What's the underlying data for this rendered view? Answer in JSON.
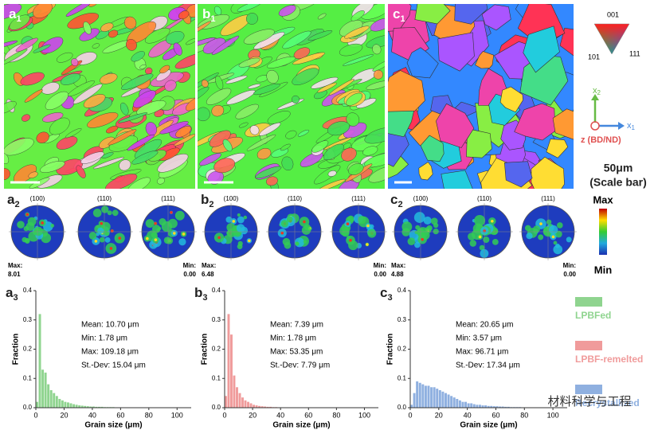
{
  "map_labels": [
    {
      "main": "a",
      "sub": "1"
    },
    {
      "main": "b",
      "sub": "1"
    },
    {
      "main": "c",
      "sub": "1"
    }
  ],
  "pole_groups": [
    {
      "label": {
        "main": "a",
        "sub": "2"
      },
      "planes": [
        "(100)",
        "(110)",
        "(111)"
      ],
      "max_label": "Max:",
      "max": "8.01",
      "min_label": "Min:",
      "min": "0.00"
    },
    {
      "label": {
        "main": "b",
        "sub": "2"
      },
      "planes": [
        "(100)",
        "(110)",
        "(111)"
      ],
      "max_label": "Max:",
      "max": "6.48",
      "min_label": "Min:",
      "min": "0.00"
    },
    {
      "label": {
        "main": "c",
        "sub": "2"
      },
      "planes": [
        "(100)",
        "(110)",
        "(111)"
      ],
      "max_label": "Max:",
      "max": "4.88",
      "min_label": "Min:",
      "min": "0.00"
    }
  ],
  "ipf_key": [
    "001",
    "101",
    "111"
  ],
  "axes_key": {
    "x2": {
      "main": "x",
      "sub": "2"
    },
    "x1": {
      "main": "x",
      "sub": "1"
    },
    "z": "z (BD/ND)"
  },
  "scale_bar": [
    "50μm",
    "(Scale bar)"
  ],
  "colorbar": [
    "Max",
    "Min"
  ],
  "legend_items": [
    {
      "name": "LPBFed",
      "color": "#8fd48f"
    },
    {
      "name": "LPBF-remelted",
      "color": "#f09b9b"
    },
    {
      "name": "Recrystallized",
      "color": "#8fb0e0"
    }
  ],
  "watermark": "材料科学与工程",
  "chart_data": [
    {
      "type": "histogram",
      "label": {
        "main": "a",
        "sub": "3"
      },
      "xlabel": "Grain size (μm)",
      "ylabel": "Fraction",
      "color": "#8fd48f",
      "annotations": [
        "Mean:  10.70 μm",
        "Min: 1.78 μm",
        "Max: 109.18 μm",
        "St.-Dev: 15.04 μm"
      ],
      "bins": [
        0,
        2,
        4,
        6,
        8,
        10,
        12,
        14,
        16,
        18,
        20,
        22,
        24,
        26,
        28,
        30,
        32,
        34,
        36,
        38,
        40,
        42,
        44,
        46,
        48,
        50,
        52,
        54,
        56,
        58,
        60,
        62,
        64,
        66,
        68,
        70,
        72,
        74,
        76,
        78,
        80,
        82,
        84,
        86,
        88,
        90,
        92,
        94,
        96,
        98,
        100,
        102,
        104,
        106,
        108,
        110
      ],
      "values": [
        0.02,
        0.32,
        0.13,
        0.12,
        0.08,
        0.06,
        0.05,
        0.04,
        0.03,
        0.025,
        0.02,
        0.018,
        0.015,
        0.012,
        0.01,
        0.008,
        0.007,
        0.006,
        0.005,
        0.004,
        0.004,
        0.003,
        0.003,
        0.003,
        0.002,
        0.002,
        0.002,
        0.002,
        0.001,
        0.001,
        0.001,
        0.001,
        0.001,
        0,
        0,
        0.001,
        0.001,
        0.001,
        0,
        0,
        0,
        0,
        0,
        0,
        0,
        0,
        0,
        0,
        0,
        0,
        0,
        0,
        0,
        0.001,
        0
      ],
      "xlim": [
        0,
        110
      ],
      "ylim": [
        0,
        0.4
      ],
      "xticks": [
        0,
        20,
        40,
        60,
        80,
        100
      ],
      "yticks": [
        {
          "value": 0,
          "label": "0.0"
        },
        0.1,
        0.2,
        0.3,
        0.4
      ]
    },
    {
      "type": "histogram",
      "label": {
        "main": "b",
        "sub": "3"
      },
      "xlabel": "Grain size (μm)",
      "ylabel": "Fraction",
      "color": "#f09b9b",
      "annotations": [
        "Mean:  7.39 μm",
        "Min: 1.78 μm",
        "Max: 53.35 μm",
        "St.-Dev: 7.79 μm"
      ],
      "bins": [
        0,
        2,
        4,
        6,
        8,
        10,
        12,
        14,
        16,
        18,
        20,
        22,
        24,
        26,
        28,
        30,
        32,
        34,
        36,
        38,
        40,
        42,
        44,
        46,
        48,
        50,
        52,
        54,
        56
      ],
      "values": [
        0.04,
        0.32,
        0.25,
        0.11,
        0.07,
        0.05,
        0.035,
        0.025,
        0.02,
        0.015,
        0.01,
        0.008,
        0.006,
        0.005,
        0.004,
        0.003,
        0.003,
        0.002,
        0.002,
        0.001,
        0.001,
        0.001,
        0.001,
        0.001,
        0,
        0.001,
        0.001,
        0
      ],
      "xlim": [
        0,
        110
      ],
      "ylim": [
        0,
        0.4
      ],
      "xticks": [
        0,
        20,
        40,
        60,
        80,
        100
      ],
      "yticks": [
        {
          "value": 0,
          "label": "0.0"
        },
        0.1,
        0.2,
        0.3,
        0.4
      ]
    },
    {
      "type": "histogram",
      "label": {
        "main": "c",
        "sub": "3"
      },
      "xlabel": "Grain size (μm)",
      "ylabel": "Fraction",
      "color": "#8fb0e0",
      "annotations": [
        "Mean:  20.65 μm",
        "Min: 3.57 μm",
        "Max: 96.71 μm",
        "St.-Dev: 17.34 μm"
      ],
      "bins": [
        0,
        2,
        4,
        6,
        8,
        10,
        12,
        14,
        16,
        18,
        20,
        22,
        24,
        26,
        28,
        30,
        32,
        34,
        36,
        38,
        40,
        42,
        44,
        46,
        48,
        50,
        52,
        54,
        56,
        58,
        60,
        62,
        64,
        66,
        68,
        70,
        72,
        74,
        76,
        78,
        80,
        82,
        84,
        86,
        88,
        90,
        92,
        94,
        96,
        98
      ],
      "values": [
        0.01,
        0.05,
        0.09,
        0.085,
        0.08,
        0.075,
        0.075,
        0.07,
        0.07,
        0.065,
        0.06,
        0.055,
        0.05,
        0.045,
        0.04,
        0.035,
        0.03,
        0.025,
        0.02,
        0.02,
        0.015,
        0.015,
        0.012,
        0.01,
        0.01,
        0.008,
        0.008,
        0.006,
        0.006,
        0.005,
        0.005,
        0.004,
        0.004,
        0.003,
        0.003,
        0.002,
        0.002,
        0.002,
        0.002,
        0.001,
        0.001,
        0.001,
        0.001,
        0.001,
        0,
        0,
        0,
        0,
        0.001
      ],
      "xlim": [
        0,
        110
      ],
      "ylim": [
        0,
        0.4
      ],
      "xticks": [
        0,
        20,
        40,
        60,
        80,
        100
      ],
      "yticks": [
        {
          "value": 0,
          "label": "0.0"
        },
        0.1,
        0.2,
        0.3,
        0.4
      ]
    }
  ]
}
